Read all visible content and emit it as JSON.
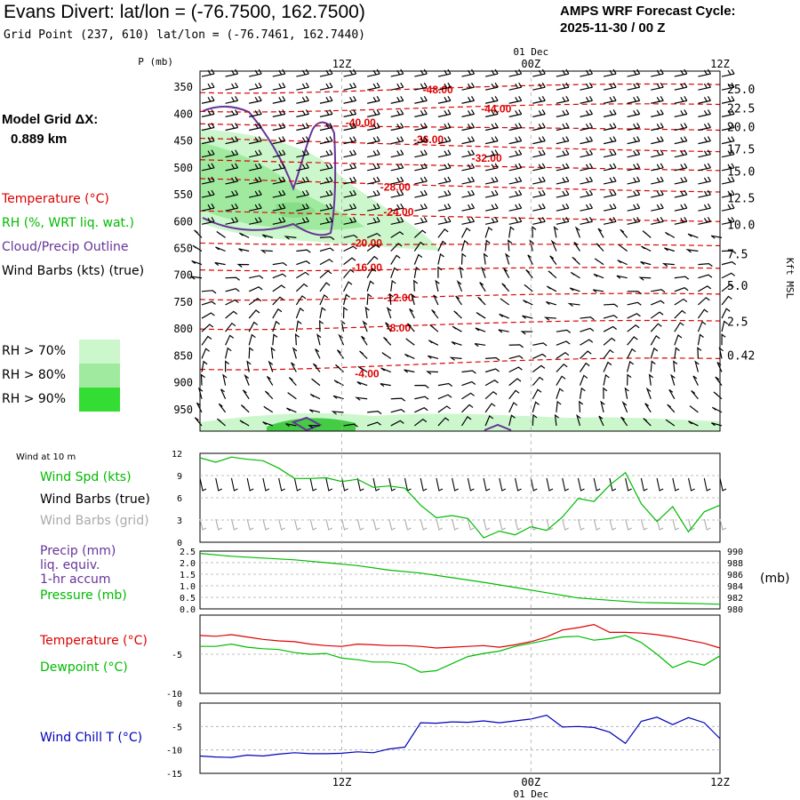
{
  "header": {
    "title": "Evans Divert:  lat/lon = (-76.7500, 162.7500)",
    "grid_point": "Grid Point (237, 610) lat/lon = (-76.7461, 162.7440)",
    "cycle_line1": "AMPS WRF Forecast Cycle:",
    "cycle_line2": "2025-11-30 / 00  Z",
    "model_grid_label": "Model Grid ΔX:",
    "model_grid_value": "0.889 km"
  },
  "legend": {
    "temperature": "Temperature (°C)",
    "rh": "RH (%, WRT liq. wat.)",
    "cloud": "Cloud/Precip Outline",
    "wind_barbs": "Wind Barbs (kts) (true)",
    "rh70": "RH > 70%",
    "rh80": "RH > 80%",
    "rh90": "RH > 90%",
    "rh70_color": "#ccf7cc",
    "rh80_color": "#a0eaa0",
    "rh90_color": "#33dd33",
    "temperature_color": "#dd0000",
    "cloud_color": "#663399"
  },
  "time_axis": {
    "labels": [
      "12Z",
      "00Z",
      "12Z"
    ],
    "date_label": "01 Dec",
    "x_range_hours": [
      0,
      33
    ],
    "tick_hours": [
      9,
      21,
      33
    ],
    "start_hour": 0
  },
  "chart_data": [
    {
      "type": "contour",
      "title": "Vertical profile",
      "ylabel": "P (mb)",
      "right_label": "Kft MSL",
      "p_ticks": [
        350,
        400,
        450,
        500,
        550,
        600,
        650,
        700,
        750,
        800,
        850,
        900,
        950
      ],
      "p_ticks_text": [
        "350",
        "400",
        "450",
        "500",
        "550",
        "600",
        "650",
        "700",
        "750",
        "800",
        "850",
        "900",
        "950"
      ],
      "p_range": [
        320,
        990
      ],
      "kft_ticks": [
        {
          "label": "25.0",
          "p": 355
        },
        {
          "label": "22.5",
          "p": 390
        },
        {
          "label": "20.0",
          "p": 425
        },
        {
          "label": "17.5",
          "p": 466
        },
        {
          "label": "15.0",
          "p": 508
        },
        {
          "label": "12.5",
          "p": 557
        },
        {
          "label": "10.0",
          "p": 607
        },
        {
          "label": "7.5",
          "p": 662
        },
        {
          "label": "5.0",
          "p": 720
        },
        {
          "label": "2.5",
          "p": 787
        },
        {
          "label": "0.42",
          "p": 850
        }
      ],
      "temperature_labels": [
        {
          "text": "-48.00",
          "hour": 15.1,
          "p": 355
        },
        {
          "text": "-44.00",
          "hour": 18.8,
          "p": 390
        },
        {
          "text": "-40.00",
          "hour": 10.2,
          "p": 416
        },
        {
          "text": "-36.00",
          "hour": 14.5,
          "p": 447
        },
        {
          "text": "-32.00",
          "hour": 18.2,
          "p": 482
        },
        {
          "text": "-28.00",
          "hour": 12.4,
          "p": 536
        },
        {
          "text": "-24.00",
          "hour": 12.6,
          "p": 582
        },
        {
          "text": "-20.00",
          "hour": 10.6,
          "p": 640
        },
        {
          "text": "-16.00",
          "hour": 10.6,
          "p": 686
        },
        {
          "text": "-12.00",
          "hour": 12.6,
          "p": 742
        },
        {
          "text": "-8.00",
          "hour": 12.6,
          "p": 798
        },
        {
          "text": "-4.00",
          "hour": 10.6,
          "p": 883
        }
      ]
    },
    {
      "type": "line",
      "title": "Wind at 10 m",
      "legend": [
        "Wind Spd (kts)",
        "Wind Barbs (true)",
        "Wind Barbs (grid)"
      ],
      "ylim": [
        0,
        12
      ],
      "yticks": [
        0,
        3,
        6,
        9,
        12
      ],
      "ytick_labels": [
        "0",
        "3",
        "6",
        "9",
        "12"
      ],
      "series": [
        {
          "name": "Wind Spd (kts)",
          "color": "#00bb00",
          "x": [
            0,
            1,
            2,
            3,
            4,
            5,
            6,
            7,
            8,
            9,
            10,
            11,
            12,
            13,
            14,
            15,
            16,
            17,
            18,
            19,
            20,
            21,
            22,
            23,
            24,
            25,
            26,
            27,
            28,
            29,
            30,
            31,
            32,
            33
          ],
          "values": [
            11.4,
            10.8,
            11.5,
            11.2,
            11.0,
            10.0,
            8.6,
            8.6,
            8.7,
            8.2,
            8.5,
            7.4,
            7.6,
            7.3,
            5.0,
            3.3,
            3.6,
            3.2,
            0.6,
            1.5,
            1.0,
            2.1,
            1.6,
            3.4,
            5.9,
            5.5,
            7.7,
            9.4,
            5.2,
            2.8,
            4.8,
            1.4,
            4.1,
            5.0
          ]
        }
      ]
    },
    {
      "type": "line",
      "title": "Precip / Pressure",
      "legend": [
        "Precip (mm)",
        "liq. equiv.",
        "1-hr accum",
        "Pressure (mb)"
      ],
      "left_ticks": [
        "0.0",
        "0.5",
        "1.0",
        "1.5",
        "2.0",
        "2.5"
      ],
      "right_ticks": [
        "980",
        "982",
        "984",
        "986",
        "988",
        "990"
      ],
      "ylim": [
        980,
        990
      ],
      "series": [
        {
          "name": "Pressure (mb)",
          "color": "#00bb00",
          "x": [
            0,
            2,
            4,
            6,
            8,
            10,
            12,
            14,
            16,
            18,
            20,
            22,
            24,
            26,
            28,
            30,
            32,
            33
          ],
          "values": [
            989.6,
            989.1,
            988.8,
            988.5,
            988.0,
            987.5,
            986.7,
            986.2,
            985.4,
            984.6,
            983.7,
            982.8,
            981.9,
            981.5,
            981.1,
            981.0,
            980.9,
            980.8
          ]
        }
      ]
    },
    {
      "type": "line",
      "title": "Temperature / Dewpoint",
      "legend": [
        "Temperature (°C)",
        "Dewpoint (°C)"
      ],
      "ylim": [
        -10,
        0
      ],
      "yticks": [
        -10,
        -5
      ],
      "ytick_labels": [
        "-10",
        "-5"
      ],
      "series": [
        {
          "name": "Temperature (°C)",
          "color": "#dd0000",
          "x": [
            0,
            1,
            2,
            3,
            4,
            5,
            6,
            7,
            8,
            9,
            10,
            11,
            12,
            13,
            14,
            15,
            16,
            17,
            18,
            19,
            20,
            21,
            22,
            23,
            24,
            25,
            26,
            27,
            28,
            29,
            30,
            31,
            32,
            33
          ],
          "values": [
            -2.6,
            -2.7,
            -2.5,
            -2.8,
            -3.1,
            -3.3,
            -3.4,
            -3.7,
            -3.9,
            -4.0,
            -3.7,
            -3.8,
            -3.9,
            -3.9,
            -4.0,
            -4.2,
            -4.1,
            -4.0,
            -3.9,
            -4.1,
            -3.8,
            -3.4,
            -2.8,
            -1.9,
            -1.6,
            -1.2,
            -2.2,
            -2.2,
            -2.3,
            -2.5,
            -2.8,
            -3.2,
            -3.6,
            -4.2
          ]
        },
        {
          "name": "Dewpoint (°C)",
          "color": "#00bb00",
          "x": [
            0,
            1,
            2,
            3,
            4,
            5,
            6,
            7,
            8,
            9,
            10,
            11,
            12,
            13,
            14,
            15,
            16,
            17,
            18,
            19,
            20,
            21,
            22,
            23,
            24,
            25,
            26,
            27,
            28,
            29,
            30,
            31,
            32,
            33
          ],
          "values": [
            -4.0,
            -4.0,
            -3.7,
            -4.1,
            -4.3,
            -4.4,
            -4.8,
            -5.0,
            -4.9,
            -5.5,
            -5.7,
            -6.0,
            -6.0,
            -6.3,
            -7.3,
            -7.1,
            -6.2,
            -5.3,
            -4.9,
            -4.6,
            -4.0,
            -3.6,
            -3.2,
            -2.8,
            -2.7,
            -3.2,
            -3.0,
            -2.6,
            -3.5,
            -5.0,
            -6.7,
            -5.9,
            -6.4,
            -5.2
          ]
        }
      ]
    },
    {
      "type": "line",
      "title": "Wind Chill",
      "legend": [
        "Wind Chill T (°C)"
      ],
      "ylim": [
        -15,
        0
      ],
      "yticks": [
        -15,
        -10,
        -5,
        0
      ],
      "ytick_labels": [
        "-15",
        "-10",
        "-5",
        "0"
      ],
      "series": [
        {
          "name": "Wind Chill T (°C)",
          "color": "#0000bb",
          "x": [
            0,
            1,
            2,
            3,
            4,
            5,
            6,
            7,
            8,
            9,
            10,
            11,
            12,
            13,
            14,
            15,
            16,
            17,
            18,
            19,
            20,
            21,
            22,
            23,
            24,
            25,
            26,
            27,
            28,
            29,
            30,
            31,
            32,
            33
          ],
          "values": [
            -11.3,
            -11.5,
            -11.6,
            -11.1,
            -11.3,
            -10.9,
            -10.6,
            -10.8,
            -10.8,
            -10.7,
            -10.4,
            -10.6,
            -9.8,
            -9.4,
            -4.2,
            -4.3,
            -4.0,
            -4.1,
            -3.8,
            -4.2,
            -3.8,
            -3.4,
            -2.6,
            -5.1,
            -5.0,
            -5.2,
            -6.2,
            -8.6,
            -3.9,
            -3.0,
            -4.6,
            -3.1,
            -4.2,
            -7.6
          ]
        }
      ]
    }
  ],
  "panels": {
    "wind10m_label": "Wind at 10 m",
    "wind_spd_label": "Wind Spd (kts)",
    "wind_barbs_true_label": "Wind Barbs (true)",
    "wind_barbs_grid_label": "Wind Barbs (grid)",
    "precip_label1": "Precip (mm)",
    "precip_label2": "liq. equiv.",
    "precip_label3": "1-hr accum",
    "pressure_label": "Pressure (mb)",
    "mb_unit": "(mb)",
    "temp_label": "Temperature (°C)",
    "dewpoint_label": "Dewpoint (°C)",
    "windchill_label": "Wind Chill T (°C)",
    "green": "#00bb00",
    "purple": "#663399",
    "gray": "#aaaaaa",
    "blue": "#0000bb"
  }
}
